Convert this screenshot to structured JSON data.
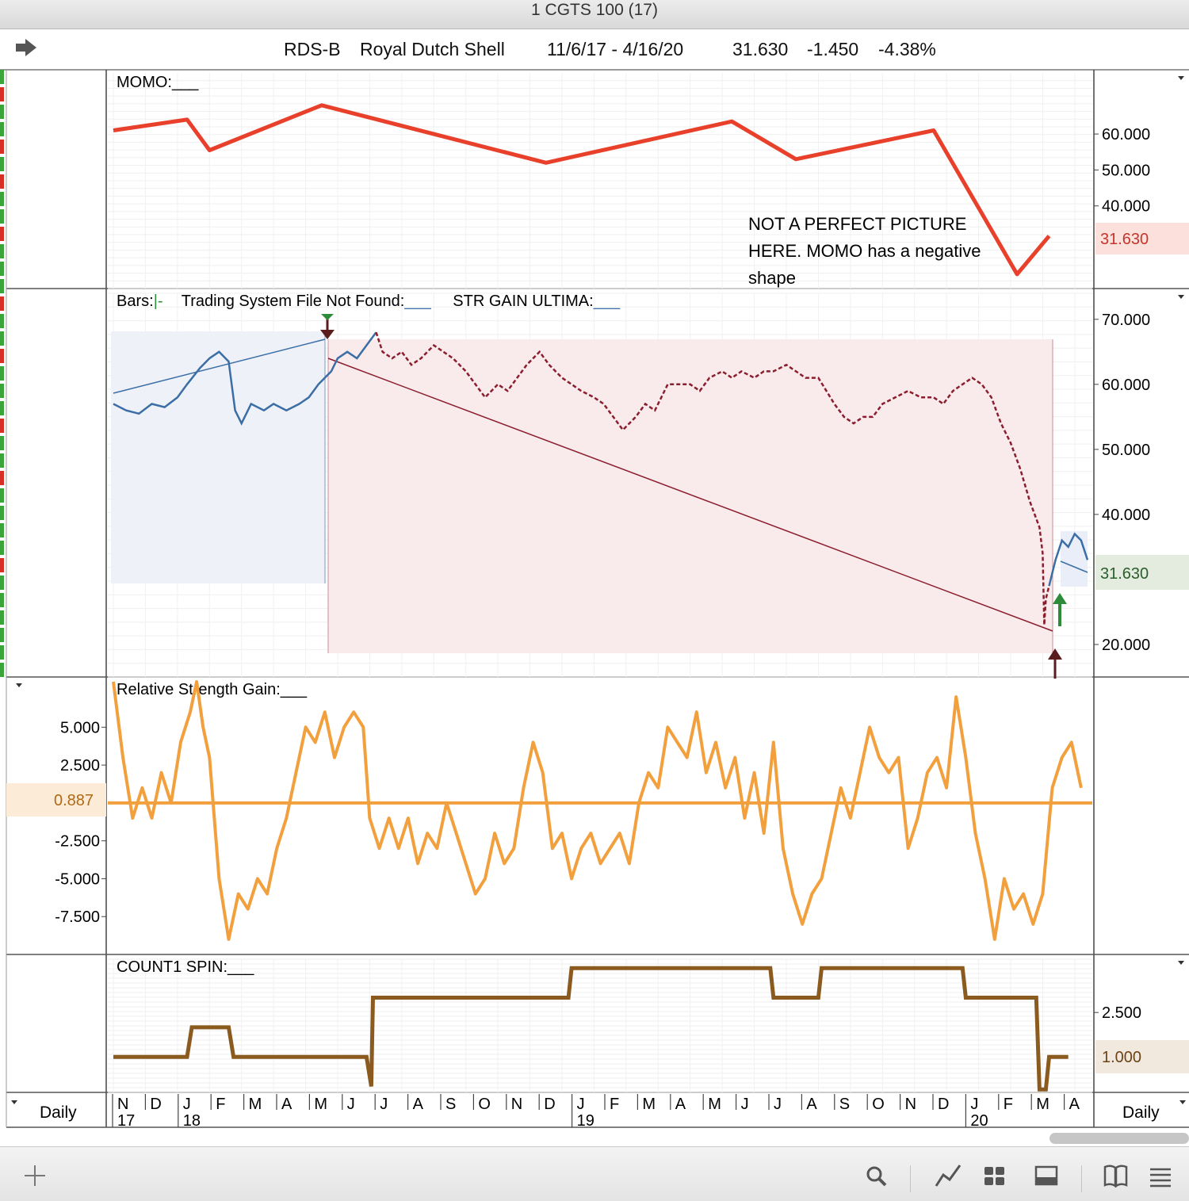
{
  "window_title": "1 CGTS 100 (17)",
  "header": {
    "symbol": "RDS-B",
    "name": "Royal Dutch Shell",
    "date_range": "11/6/17 - 4/16/20",
    "last": "31.630",
    "change": "-1.450",
    "change_pct": "-4.38%"
  },
  "colors": {
    "momo": "#e8402a",
    "price_up": "#3b6ea5",
    "price_down": "#8b1e2e",
    "rsg": "#f2a03d",
    "count": "#8b5a1e",
    "accent_green": "#2e8b3a"
  },
  "footer": {
    "left_period": "Daily",
    "right_period": "Daily"
  },
  "x_axis": {
    "months": [
      "N",
      "D",
      "J",
      "F",
      "M",
      "A",
      "M",
      "J",
      "J",
      "A",
      "S",
      "O",
      "N",
      "D",
      "J",
      "F",
      "M",
      "A",
      "M",
      "J",
      "J",
      "A",
      "S",
      "O",
      "N",
      "D",
      "J",
      "F",
      "M",
      "A"
    ],
    "years": [
      {
        "label": "17",
        "at": 0
      },
      {
        "label": "18",
        "at": 2
      },
      {
        "label": "19",
        "at": 14
      },
      {
        "label": "20",
        "at": 26
      }
    ]
  },
  "chart_data": [
    {
      "type": "line",
      "title": "MOMO:___",
      "series": [
        {
          "values": [
            [
              0,
              61
            ],
            [
              2.3,
              64
            ],
            [
              3.0,
              55.5
            ],
            [
              6.5,
              68
            ],
            [
              13.5,
              52
            ],
            [
              19.3,
              63.5
            ],
            [
              21.3,
              53
            ],
            [
              25.6,
              61
            ],
            [
              28.2,
              21
            ],
            [
              29.2,
              31.63
            ]
          ]
        }
      ],
      "ylim": [
        17,
        77
      ],
      "y_ticks": [
        "60.000",
        "50.000",
        "40.000"
      ],
      "last_value": "31.630",
      "annotation": [
        "NOT A PERFECT PICTURE",
        "HERE.  MOMO has a negative",
        "shape"
      ]
    },
    {
      "type": "line",
      "title_parts": [
        "Bars:",
        "|-",
        "Trading System File Not Found:",
        "___",
        "STR GAIN ULTIMA:",
        "___"
      ],
      "ylim": [
        15,
        74
      ],
      "y_ticks": [
        "70.000",
        "60.000",
        "50.000",
        "40.000",
        "20.000"
      ],
      "last_value": "31.630",
      "series": [
        {
          "values": [
            [
              0,
              57
            ],
            [
              0.4,
              56
            ],
            [
              0.8,
              55.5
            ],
            [
              1.2,
              57
            ],
            [
              1.6,
              56.5
            ],
            [
              2.0,
              58
            ],
            [
              2.3,
              60
            ],
            [
              2.7,
              62.5
            ],
            [
              3.0,
              64
            ],
            [
              3.3,
              65
            ],
            [
              3.6,
              63.5
            ],
            [
              3.8,
              56
            ],
            [
              4.0,
              54
            ],
            [
              4.3,
              57
            ],
            [
              4.7,
              56
            ],
            [
              5.0,
              57
            ],
            [
              5.4,
              56
            ],
            [
              5.8,
              57
            ],
            [
              6.1,
              58
            ],
            [
              6.4,
              60
            ],
            [
              6.8,
              62
            ],
            [
              7.0,
              64
            ],
            [
              7.3,
              65
            ],
            [
              7.6,
              64
            ],
            [
              7.9,
              66
            ],
            [
              8.2,
              68
            ]
          ]
        },
        {
          "values": [
            [
              8.2,
              68
            ],
            [
              8.4,
              65
            ],
            [
              8.7,
              64
            ],
            [
              9.0,
              65
            ],
            [
              9.3,
              63
            ],
            [
              9.6,
              64
            ],
            [
              10.0,
              66
            ],
            [
              10.3,
              65
            ],
            [
              10.6,
              64
            ],
            [
              11.0,
              62
            ],
            [
              11.3,
              60
            ],
            [
              11.6,
              58
            ],
            [
              12.0,
              60
            ],
            [
              12.3,
              59
            ],
            [
              12.6,
              61
            ],
            [
              12.9,
              63
            ],
            [
              13.3,
              65
            ],
            [
              13.6,
              63
            ],
            [
              14.0,
              61
            ],
            [
              14.3,
              60
            ],
            [
              14.6,
              59
            ],
            [
              15.0,
              58
            ],
            [
              15.3,
              57
            ],
            [
              15.6,
              55
            ],
            [
              15.9,
              53
            ],
            [
              16.3,
              55
            ],
            [
              16.6,
              57
            ],
            [
              16.9,
              56
            ],
            [
              17.3,
              60
            ],
            [
              17.6,
              60
            ],
            [
              18.0,
              60
            ],
            [
              18.3,
              59
            ],
            [
              18.6,
              61
            ],
            [
              19.0,
              62
            ],
            [
              19.3,
              61
            ],
            [
              19.6,
              62
            ],
            [
              20.0,
              61
            ],
            [
              20.3,
              62
            ],
            [
              20.6,
              62
            ],
            [
              21.0,
              63
            ],
            [
              21.3,
              62
            ],
            [
              21.6,
              61
            ],
            [
              22.0,
              61
            ],
            [
              22.5,
              57
            ],
            [
              22.8,
              55
            ],
            [
              23.1,
              54
            ],
            [
              23.4,
              55
            ],
            [
              23.7,
              55
            ],
            [
              24.0,
              57
            ],
            [
              24.4,
              58
            ],
            [
              24.8,
              59
            ],
            [
              25.2,
              58
            ],
            [
              25.6,
              58
            ],
            [
              25.9,
              57
            ],
            [
              26.2,
              59
            ],
            [
              26.5,
              60
            ],
            [
              26.8,
              61
            ],
            [
              27.1,
              60
            ],
            [
              27.4,
              58
            ],
            [
              27.7,
              54
            ],
            [
              28.0,
              51
            ],
            [
              28.3,
              47
            ],
            [
              28.6,
              42
            ],
            [
              28.9,
              38
            ],
            [
              29.0,
              34
            ],
            [
              29.05,
              23
            ],
            [
              29.1,
              27
            ],
            [
              29.2,
              29
            ]
          ]
        },
        {
          "values": [
            [
              29.2,
              29
            ],
            [
              29.4,
              33
            ],
            [
              29.6,
              36
            ],
            [
              29.8,
              35
            ],
            [
              30.0,
              37
            ],
            [
              30.2,
              36
            ],
            [
              30.4,
              33
            ]
          ]
        }
      ]
    },
    {
      "type": "line",
      "title": "Relative Strength Gain:___",
      "ylim": [
        -10,
        8
      ],
      "y_ticks": [
        "5.000",
        "2.500",
        "-2.500",
        "-5.000",
        "-7.500"
      ],
      "last_value": "0.887",
      "baseline": 0,
      "series": [
        {
          "values": [
            [
              0,
              8
            ],
            [
              0.3,
              3
            ],
            [
              0.6,
              -1
            ],
            [
              0.9,
              1
            ],
            [
              1.2,
              -1
            ],
            [
              1.5,
              2
            ],
            [
              1.8,
              0
            ],
            [
              2.1,
              4
            ],
            [
              2.4,
              6
            ],
            [
              2.6,
              8
            ],
            [
              2.8,
              5
            ],
            [
              3.0,
              3
            ],
            [
              3.3,
              -5
            ],
            [
              3.6,
              -9
            ],
            [
              3.9,
              -6
            ],
            [
              4.2,
              -7
            ],
            [
              4.5,
              -5
            ],
            [
              4.8,
              -6
            ],
            [
              5.1,
              -3
            ],
            [
              5.4,
              -1
            ],
            [
              5.7,
              2
            ],
            [
              6.0,
              5
            ],
            [
              6.3,
              4
            ],
            [
              6.6,
              6
            ],
            [
              6.9,
              3
            ],
            [
              7.2,
              5
            ],
            [
              7.5,
              6
            ],
            [
              7.8,
              5
            ],
            [
              8.0,
              -1
            ],
            [
              8.3,
              -3
            ],
            [
              8.6,
              -1
            ],
            [
              8.9,
              -3
            ],
            [
              9.2,
              -1
            ],
            [
              9.5,
              -4
            ],
            [
              9.8,
              -2
            ],
            [
              10.1,
              -3
            ],
            [
              10.4,
              0
            ],
            [
              10.7,
              -2
            ],
            [
              11.0,
              -4
            ],
            [
              11.3,
              -6
            ],
            [
              11.6,
              -5
            ],
            [
              11.9,
              -2
            ],
            [
              12.2,
              -4
            ],
            [
              12.5,
              -3
            ],
            [
              12.8,
              1
            ],
            [
              13.1,
              4
            ],
            [
              13.4,
              2
            ],
            [
              13.7,
              -3
            ],
            [
              14.0,
              -2
            ],
            [
              14.3,
              -5
            ],
            [
              14.6,
              -3
            ],
            [
              14.9,
              -2
            ],
            [
              15.2,
              -4
            ],
            [
              15.5,
              -3
            ],
            [
              15.8,
              -2
            ],
            [
              16.1,
              -4
            ],
            [
              16.4,
              0
            ],
            [
              16.7,
              2
            ],
            [
              17.0,
              1
            ],
            [
              17.3,
              5
            ],
            [
              17.6,
              4
            ],
            [
              17.9,
              3
            ],
            [
              18.2,
              6
            ],
            [
              18.5,
              2
            ],
            [
              18.8,
              4
            ],
            [
              19.1,
              1
            ],
            [
              19.4,
              3
            ],
            [
              19.7,
              -1
            ],
            [
              20.0,
              2
            ],
            [
              20.3,
              -2
            ],
            [
              20.6,
              4
            ],
            [
              20.9,
              -3
            ],
            [
              21.2,
              -6
            ],
            [
              21.5,
              -8
            ],
            [
              21.8,
              -6
            ],
            [
              22.1,
              -5
            ],
            [
              22.4,
              -2
            ],
            [
              22.7,
              1
            ],
            [
              23.0,
              -1
            ],
            [
              23.3,
              2
            ],
            [
              23.6,
              5
            ],
            [
              23.9,
              3
            ],
            [
              24.2,
              2
            ],
            [
              24.5,
              3
            ],
            [
              24.8,
              -3
            ],
            [
              25.1,
              -1
            ],
            [
              25.4,
              2
            ],
            [
              25.7,
              3
            ],
            [
              26.0,
              1
            ],
            [
              26.3,
              7
            ],
            [
              26.6,
              3
            ],
            [
              26.9,
              -2
            ],
            [
              27.2,
              -5
            ],
            [
              27.5,
              -9
            ],
            [
              27.8,
              -5
            ],
            [
              28.1,
              -7
            ],
            [
              28.4,
              -6
            ],
            [
              28.7,
              -8
            ],
            [
              29.0,
              -6
            ],
            [
              29.3,
              1
            ],
            [
              29.6,
              3
            ],
            [
              29.9,
              4
            ],
            [
              30.2,
              1
            ]
          ]
        }
      ]
    },
    {
      "type": "line",
      "title": "COUNT1 SPIN:___",
      "ylim": [
        -0.2,
        4.3
      ],
      "y_ticks": [
        "2.500"
      ],
      "last_value": "1.000",
      "series": [
        {
          "values": [
            [
              0,
              1
            ],
            [
              2.3,
              1
            ],
            [
              2.45,
              2
            ],
            [
              3.6,
              2
            ],
            [
              3.75,
              1
            ],
            [
              7.9,
              1
            ],
            [
              8.05,
              0
            ],
            [
              8.1,
              3
            ],
            [
              14.2,
              3
            ],
            [
              14.3,
              4
            ],
            [
              20.5,
              4
            ],
            [
              20.6,
              3
            ],
            [
              22.0,
              3
            ],
            [
              22.1,
              4
            ],
            [
              26.5,
              4
            ],
            [
              26.6,
              3
            ],
            [
              28.8,
              3
            ],
            [
              28.9,
              -0.1
            ],
            [
              29.1,
              -0.1
            ],
            [
              29.2,
              1
            ],
            [
              29.8,
              1
            ]
          ]
        }
      ]
    }
  ]
}
